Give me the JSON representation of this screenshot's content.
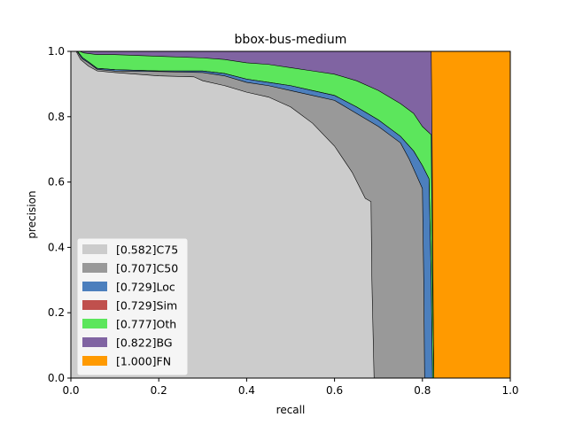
{
  "chart_data": {
    "type": "area",
    "title": "bbox-bus-medium",
    "xlabel": "recall",
    "ylabel": "precision",
    "xlim": [
      0,
      1
    ],
    "ylim": [
      0,
      1
    ],
    "xticks": [
      "0.0",
      "0.2",
      "0.4",
      "0.6",
      "0.8",
      "1.0"
    ],
    "yticks": [
      "0.0",
      "0.2",
      "0.4",
      "0.6",
      "0.8",
      "1.0"
    ],
    "legend_position": "lower-left",
    "series": [
      {
        "name": "[0.582]C75",
        "color": "#cccccc",
        "points": [
          [
            0,
            1
          ],
          [
            0.012,
            1
          ],
          [
            0.022,
            0.975
          ],
          [
            0.04,
            0.955
          ],
          [
            0.06,
            0.94
          ],
          [
            0.1,
            0.935
          ],
          [
            0.2,
            0.925
          ],
          [
            0.28,
            0.922
          ],
          [
            0.3,
            0.91
          ],
          [
            0.35,
            0.895
          ],
          [
            0.4,
            0.875
          ],
          [
            0.45,
            0.86
          ],
          [
            0.5,
            0.83
          ],
          [
            0.55,
            0.78
          ],
          [
            0.6,
            0.71
          ],
          [
            0.64,
            0.63
          ],
          [
            0.67,
            0.55
          ],
          [
            0.683,
            0.54
          ],
          [
            0.685,
            0.3
          ],
          [
            0.69,
            0
          ]
        ]
      },
      {
        "name": "[0.707]C50",
        "color": "#999999",
        "points": [
          [
            0,
            1
          ],
          [
            0.014,
            1
          ],
          [
            0.025,
            0.978
          ],
          [
            0.04,
            0.965
          ],
          [
            0.06,
            0.945
          ],
          [
            0.1,
            0.94
          ],
          [
            0.2,
            0.938
          ],
          [
            0.3,
            0.935
          ],
          [
            0.35,
            0.925
          ],
          [
            0.4,
            0.905
          ],
          [
            0.45,
            0.895
          ],
          [
            0.5,
            0.88
          ],
          [
            0.55,
            0.865
          ],
          [
            0.6,
            0.85
          ],
          [
            0.65,
            0.81
          ],
          [
            0.7,
            0.77
          ],
          [
            0.73,
            0.74
          ],
          [
            0.75,
            0.72
          ],
          [
            0.77,
            0.67
          ],
          [
            0.79,
            0.61
          ],
          [
            0.8,
            0.58
          ],
          [
            0.803,
            0.3
          ],
          [
            0.805,
            0
          ]
        ]
      },
      {
        "name": "[0.729]Loc",
        "color": "#4c7fbd",
        "points": [
          [
            0,
            1
          ],
          [
            0.015,
            1
          ],
          [
            0.027,
            0.98
          ],
          [
            0.04,
            0.968
          ],
          [
            0.06,
            0.948
          ],
          [
            0.1,
            0.944
          ],
          [
            0.2,
            0.94
          ],
          [
            0.3,
            0.94
          ],
          [
            0.35,
            0.932
          ],
          [
            0.4,
            0.915
          ],
          [
            0.45,
            0.905
          ],
          [
            0.5,
            0.895
          ],
          [
            0.55,
            0.88
          ],
          [
            0.6,
            0.865
          ],
          [
            0.65,
            0.83
          ],
          [
            0.7,
            0.79
          ],
          [
            0.73,
            0.76
          ],
          [
            0.75,
            0.74
          ],
          [
            0.78,
            0.695
          ],
          [
            0.8,
            0.65
          ],
          [
            0.815,
            0.61
          ],
          [
            0.82,
            0.3
          ],
          [
            0.823,
            0
          ]
        ]
      },
      {
        "name": "[0.729]Sim",
        "color": "#c0504d",
        "points": [
          [
            0,
            1
          ],
          [
            0.015,
            1
          ],
          [
            0.027,
            0.98
          ],
          [
            0.04,
            0.968
          ],
          [
            0.06,
            0.948
          ],
          [
            0.1,
            0.944
          ],
          [
            0.2,
            0.94
          ],
          [
            0.3,
            0.94
          ],
          [
            0.35,
            0.932
          ],
          [
            0.4,
            0.915
          ],
          [
            0.45,
            0.905
          ],
          [
            0.5,
            0.895
          ],
          [
            0.55,
            0.88
          ],
          [
            0.6,
            0.865
          ],
          [
            0.65,
            0.83
          ],
          [
            0.7,
            0.79
          ],
          [
            0.73,
            0.76
          ],
          [
            0.75,
            0.74
          ],
          [
            0.78,
            0.695
          ],
          [
            0.8,
            0.65
          ],
          [
            0.815,
            0.61
          ],
          [
            0.82,
            0.3
          ],
          [
            0.823,
            0
          ]
        ]
      },
      {
        "name": "[0.777]Oth",
        "color": "#5ce65c",
        "points": [
          [
            0,
            1
          ],
          [
            0.02,
            1
          ],
          [
            0.03,
            0.995
          ],
          [
            0.06,
            0.99
          ],
          [
            0.1,
            0.99
          ],
          [
            0.2,
            0.985
          ],
          [
            0.3,
            0.98
          ],
          [
            0.35,
            0.975
          ],
          [
            0.4,
            0.965
          ],
          [
            0.45,
            0.96
          ],
          [
            0.5,
            0.95
          ],
          [
            0.55,
            0.94
          ],
          [
            0.6,
            0.93
          ],
          [
            0.65,
            0.91
          ],
          [
            0.7,
            0.88
          ],
          [
            0.75,
            0.84
          ],
          [
            0.78,
            0.81
          ],
          [
            0.8,
            0.77
          ],
          [
            0.82,
            0.745
          ],
          [
            0.823,
            0.3
          ],
          [
            0.826,
            0
          ]
        ]
      },
      {
        "name": "[0.822]BG",
        "color": "#8064a2",
        "points": [
          [
            0,
            1
          ],
          [
            0.82,
            1
          ],
          [
            0.822,
            0.745
          ],
          [
            0.824,
            0.3
          ],
          [
            0.826,
            0
          ]
        ]
      },
      {
        "name": "[1.000]FN",
        "color": "#ff9a00",
        "points": [
          [
            0,
            1
          ],
          [
            1,
            1
          ],
          [
            1,
            0
          ]
        ]
      }
    ]
  }
}
